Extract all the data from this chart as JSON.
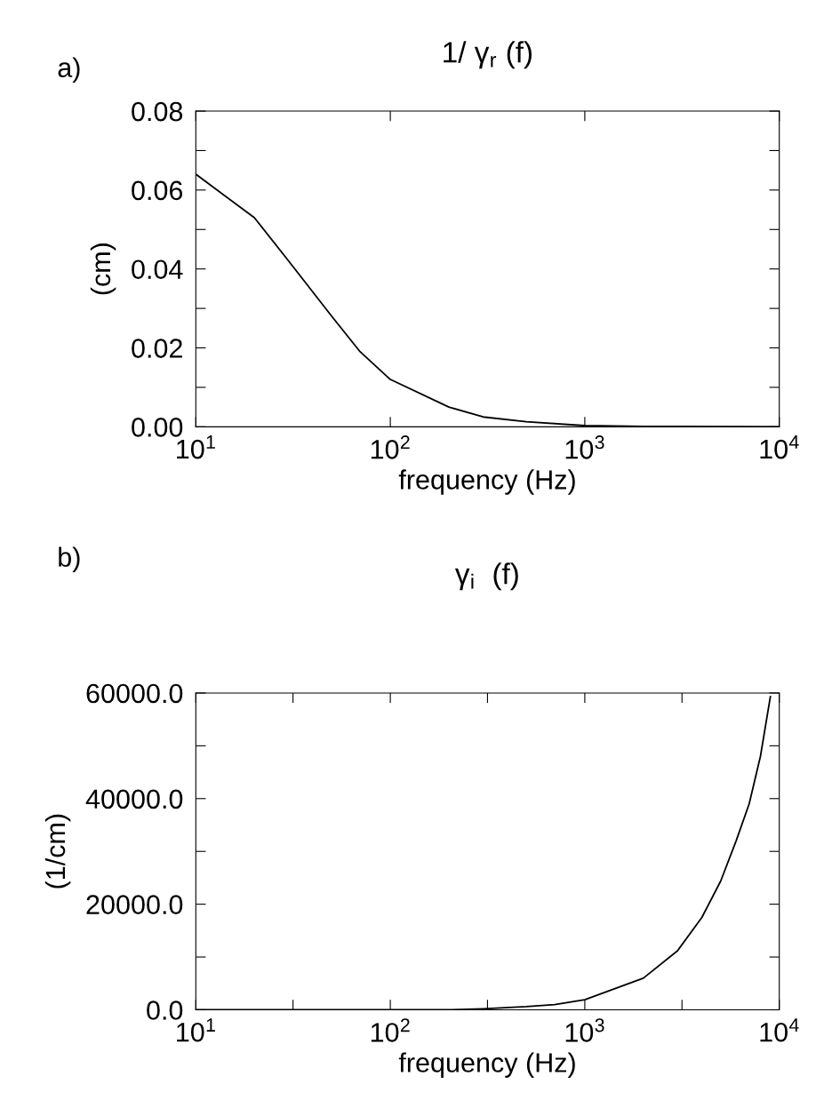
{
  "chart_data": [
    {
      "type": "line",
      "title": "1/ γ$_{r}$ (f)",
      "xlabel": "frequency (Hz)",
      "ylabel": "(cm)",
      "annotations": [
        "a)"
      ],
      "log": "x",
      "x": [
        10,
        20,
        30,
        50,
        70,
        100,
        200,
        300,
        500,
        1000,
        2000,
        10000
      ],
      "series": [
        {
          "color": "#000000",
          "values": [
            0.064,
            0.053,
            0.042,
            0.028,
            0.019,
            0.012,
            0.005,
            0.0025,
            0.0013,
            0.0003,
            0.0001,
            0
          ]
        }
      ],
      "xlim": [
        10,
        10000
      ],
      "xticks": [
        {
          "value": 10,
          "label": "10$^{1}$"
        },
        {
          "value": 100,
          "label": "10$^{2}$"
        },
        {
          "value": 1000,
          "label": "10$^{3}$"
        },
        {
          "value": 10000,
          "label": "10$^{4}$"
        }
      ],
      "ylim": [
        0,
        0.08
      ],
      "yticks": [
        {
          "value": 0,
          "label": "0.00"
        },
        {
          "value": 0.01,
          "label": null
        },
        {
          "value": 0.02,
          "label": "0.02"
        },
        {
          "value": 0.03,
          "label": null
        },
        {
          "value": 0.04,
          "label": "0.04"
        },
        {
          "value": 0.05,
          "label": null
        },
        {
          "value": 0.06,
          "label": "0.06"
        },
        {
          "value": 0.07,
          "label": null
        },
        {
          "value": 0.08,
          "label": "0.08"
        }
      ],
      "marker": "none",
      "line_style": "solid"
    },
    {
      "type": "line",
      "title": "γ$_{i}$  (f)",
      "xlabel": "frequency (Hz)",
      "ylabel": "(1/cm)",
      "annotations": [
        "b)"
      ],
      "log": "x",
      "x": [
        10,
        100,
        200,
        300,
        500,
        700,
        1000,
        2000,
        3000,
        4000,
        5000,
        6000,
        7000,
        8000,
        9000
      ],
      "series": [
        {
          "color": "#000000",
          "values": [
            0,
            0,
            0,
            200,
            600,
            1000,
            1900,
            6000,
            11200,
            17500,
            24400,
            32000,
            39000,
            48000,
            59300
          ]
        }
      ],
      "xlim": [
        10,
        10000
      ],
      "xticks": [
        {
          "value": 10,
          "label": "10$^{1}$"
        },
        {
          "value": 31.6,
          "label": null
        },
        {
          "value": 100,
          "label": "10$^{2}$"
        },
        {
          "value": 316,
          "label": null
        },
        {
          "value": 1000,
          "label": "10$^{3}$"
        },
        {
          "value": 3160,
          "label": null
        },
        {
          "value": 10000,
          "label": "10$^{4}$"
        }
      ],
      "ylim": [
        0,
        60000
      ],
      "yticks": [
        {
          "value": 0,
          "label": "0.0"
        },
        {
          "value": 10000,
          "label": null
        },
        {
          "value": 20000,
          "label": "20000.0"
        },
        {
          "value": 30000,
          "label": null
        },
        {
          "value": 40000,
          "label": "40000.0"
        },
        {
          "value": 50000,
          "label": null
        },
        {
          "value": 60000,
          "label": "60000.0"
        }
      ],
      "marker": "none",
      "line_style": "solid"
    }
  ]
}
